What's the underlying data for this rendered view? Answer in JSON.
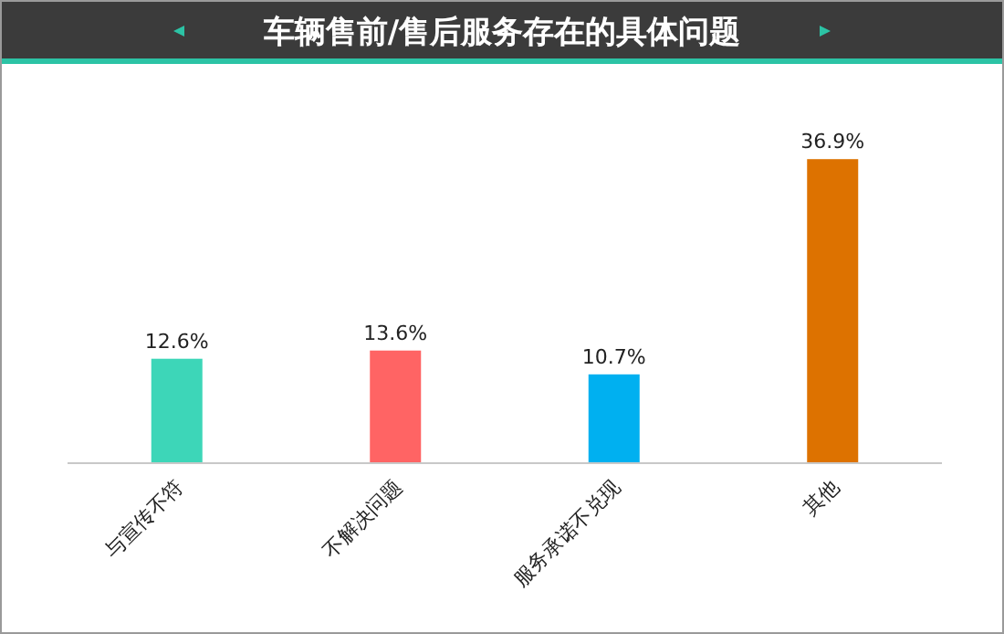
{
  "chart_data": {
    "type": "bar",
    "title": "车辆售前/售后服务存在的具体问题",
    "categories": [
      "与宣传不符",
      "不解决问题",
      "服务承诺不兑现",
      "其他"
    ],
    "values": [
      12.6,
      13.6,
      10.7,
      36.9
    ],
    "colors": [
      "#3dd6b8",
      "#ff6464",
      "#00b0f0",
      "#dd7200"
    ],
    "value_labels": [
      "12.6%",
      "13.6%",
      "10.7%",
      "36.9%"
    ]
  }
}
